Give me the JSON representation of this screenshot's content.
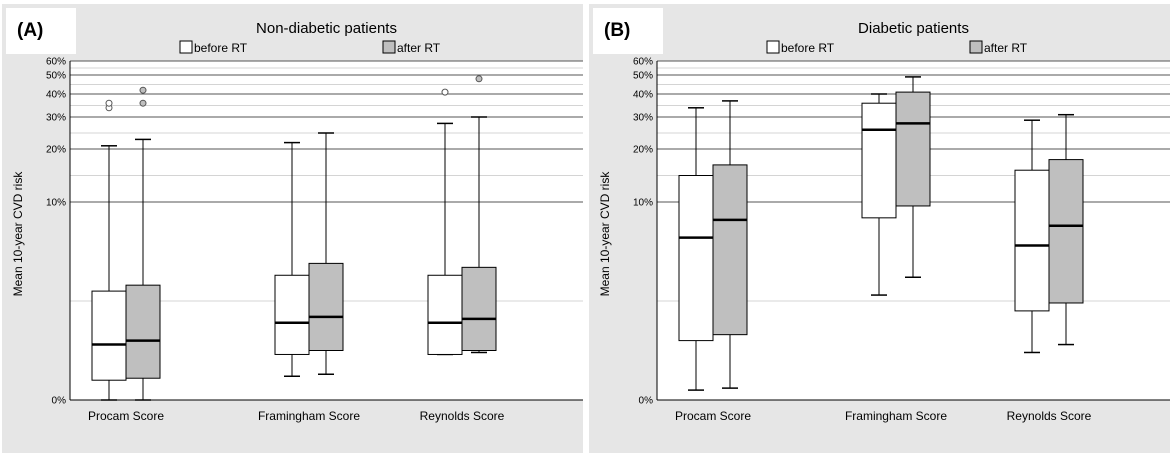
{
  "chart_data": [
    {
      "type": "boxplot",
      "panel": "(A)",
      "title": "Non-diabetic patients",
      "ylabel": "Mean 10-year CVD risk",
      "yticks": [
        "0%",
        "10%",
        "20%",
        "30%",
        "40%",
        "50%",
        "60%"
      ],
      "categories": [
        "Procam Score",
        "Framingham Score",
        "Reynolds Score"
      ],
      "legend": [
        "before RT",
        "after RT"
      ],
      "series": [
        {
          "name": "before RT",
          "color": "#ffffff",
          "boxes": [
            {
              "min": 0.0,
              "q1": 1.0,
              "median": 2.8,
              "q3": 5.5,
              "max": 21,
              "outliers": [
                34,
                36
              ]
            },
            {
              "min": 1.2,
              "q1": 2.3,
              "median": 3.9,
              "q3": 6.3,
              "max": 22,
              "outliers": []
            },
            {
              "min": 2.3,
              "q1": 2.3,
              "median": 3.9,
              "q3": 6.3,
              "max": 28,
              "outliers": [
                41
              ]
            }
          ]
        },
        {
          "name": "after RT",
          "color": "#bfbfbf",
          "boxes": [
            {
              "min": 0.0,
              "q1": 1.1,
              "median": 3.0,
              "q3": 5.8,
              "max": 23,
              "outliers": [
                36,
                42
              ]
            },
            {
              "min": 1.3,
              "q1": 2.5,
              "median": 4.2,
              "q3": 6.9,
              "max": 25,
              "outliers": []
            },
            {
              "min": 2.4,
              "q1": 2.5,
              "median": 4.1,
              "q3": 6.7,
              "max": 30,
              "outliers": [
                48
              ]
            }
          ]
        }
      ]
    },
    {
      "type": "boxplot",
      "panel": "(B)",
      "title": "Diabetic patients",
      "ylabel": "Mean 10-year CVD risk",
      "yticks": [
        "0%",
        "10%",
        "20%",
        "30%",
        "40%",
        "50%",
        "60%"
      ],
      "categories": [
        "Procam Score",
        "Framingham Score",
        "Reynolds Score"
      ],
      "legend": [
        "before RT",
        "after RT"
      ],
      "series": [
        {
          "name": "before RT",
          "color": "#ffffff",
          "boxes": [
            {
              "min": 0.5,
              "q1": 3.0,
              "median": 8.2,
              "q3": 15,
              "max": 34,
              "outliers": []
            },
            {
              "min": 5.3,
              "q1": 9.2,
              "median": 26,
              "q3": 36,
              "max": 40,
              "outliers": []
            },
            {
              "min": 2.4,
              "q1": 4.5,
              "median": 7.8,
              "q3": 16,
              "max": 29,
              "outliers": []
            }
          ]
        },
        {
          "name": "after RT",
          "color": "#bfbfbf",
          "boxes": [
            {
              "min": 0.6,
              "q1": 3.3,
              "median": 9.1,
              "q3": 17,
              "max": 37,
              "outliers": []
            },
            {
              "min": 6.2,
              "q1": 9.8,
              "median": 28,
              "q3": 41,
              "max": 49,
              "outliers": []
            },
            {
              "min": 2.8,
              "q1": 4.9,
              "median": 8.8,
              "q3": 18,
              "max": 31,
              "outliers": []
            }
          ]
        }
      ]
    }
  ]
}
